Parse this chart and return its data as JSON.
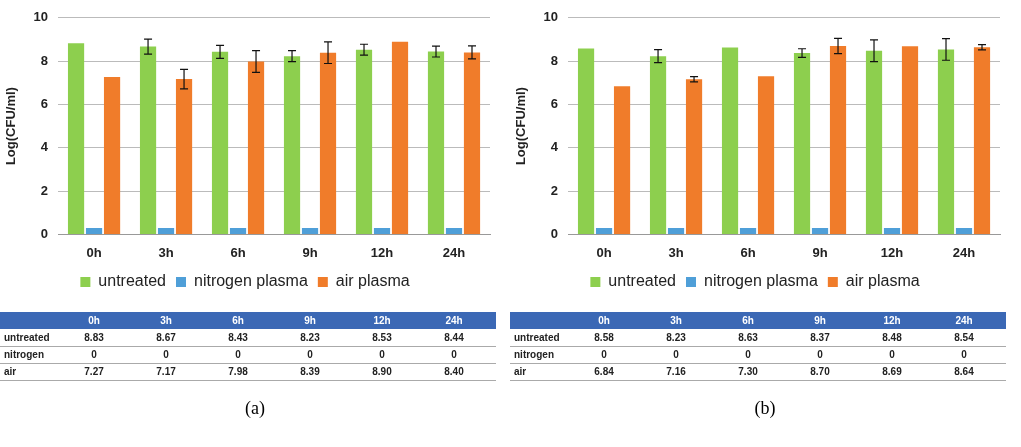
{
  "chart_data": [
    {
      "type": "bar",
      "ylabel": "Log(CFU/ml)",
      "categories": [
        "0h",
        "3h",
        "6h",
        "9h",
        "12h",
        "24h"
      ],
      "ylim": [
        0,
        10
      ],
      "yticks": [
        0,
        2,
        4,
        6,
        8,
        10
      ],
      "grid": "y",
      "legend": "bottom",
      "series": [
        {
          "name": "untreated",
          "color": "#8dcf4e",
          "values": [
            8.83,
            8.67,
            8.43,
            8.23,
            8.53,
            8.44
          ],
          "errors": [
            null,
            0.35,
            0.3,
            0.25,
            0.25,
            0.25
          ],
          "value_labels": [
            "8.83",
            "8.67",
            "8.43",
            "8.23",
            "8.53",
            "8.44"
          ]
        },
        {
          "name": "nitrogen plasma",
          "color": "#4f9fd8",
          "values": [
            0.3,
            0.3,
            0.3,
            0.3,
            0.3,
            0.3
          ],
          "value_labels": [
            "0",
            "0",
            "0",
            "0",
            "0",
            "0"
          ]
        },
        {
          "name": "air plasma",
          "color": "#f07c2a",
          "values": [
            7.27,
            7.17,
            7.98,
            8.39,
            8.9,
            8.4
          ],
          "errors": [
            null,
            0.45,
            0.5,
            0.5,
            null,
            0.3
          ],
          "value_labels": [
            "7.27",
            "7.17",
            "7.98",
            "8.39",
            "8.90",
            "8.40"
          ]
        }
      ],
      "annotations": [
        "untreated",
        "nitrogen",
        "air",
        "(a)"
      ]
    },
    {
      "type": "bar",
      "ylabel": "Log(CFU/ml)",
      "categories": [
        "0h",
        "3h",
        "6h",
        "9h",
        "12h",
        "24h"
      ],
      "ylim": [
        0,
        10
      ],
      "yticks": [
        0,
        2,
        4,
        6,
        8,
        10
      ],
      "grid": "y",
      "legend": "bottom",
      "series": [
        {
          "name": "untreated",
          "color": "#8dcf4e",
          "values": [
            8.58,
            8.23,
            8.63,
            8.37,
            8.48,
            8.54
          ],
          "errors": [
            null,
            0.3,
            null,
            0.2,
            0.5,
            0.5
          ],
          "value_labels": [
            "8.58",
            "8.23",
            "8.63",
            "8.37",
            "8.48",
            "8.54"
          ]
        },
        {
          "name": "nitrogen plasma",
          "color": "#4f9fd8",
          "values": [
            0.3,
            0.3,
            0.3,
            0.3,
            0.3,
            0.3
          ],
          "value_labels": [
            "0",
            "0",
            "0",
            "0",
            "0",
            "0"
          ]
        },
        {
          "name": "air plasma",
          "color": "#f07c2a",
          "values": [
            6.84,
            7.16,
            7.3,
            8.7,
            8.69,
            8.64
          ],
          "errors": [
            null,
            0.12,
            null,
            0.35,
            null,
            0.12
          ],
          "value_labels": [
            "6.84",
            "7.16",
            "7.30",
            "8.70",
            "8.69",
            "8.64"
          ]
        }
      ],
      "annotations": [
        "untreated",
        "nitrogen",
        "air",
        "(b)"
      ]
    }
  ]
}
